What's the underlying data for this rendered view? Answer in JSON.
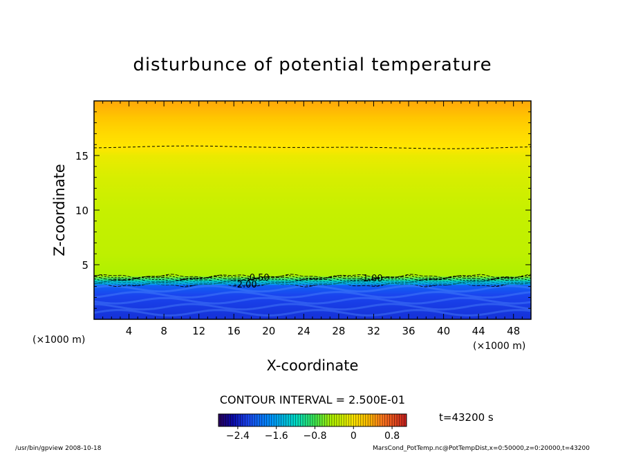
{
  "chart_data": {
    "type": "heatmap",
    "title": "disturbunce of potential temperature",
    "xlabel": "X-coordinate",
    "ylabel": "Z-coordinate",
    "x_unit": "(×1000 m)",
    "y_unit": "(×1000 m)",
    "xlim": [
      0,
      50
    ],
    "ylim": [
      0,
      20
    ],
    "x_ticks": [
      4,
      8,
      12,
      16,
      20,
      24,
      28,
      32,
      36,
      40,
      44,
      48
    ],
    "y_ticks": [
      5,
      10,
      15
    ],
    "grid": false,
    "contour_interval_text": "CONTOUR INTERVAL = 2.500E-01",
    "time_text": "t=43200 s",
    "colorbar": {
      "range": [
        -2.8,
        1.1
      ],
      "ticks": [
        -2.4,
        -1.6,
        -0.8,
        0,
        0.8
      ],
      "tick_labels": [
        "−2.4",
        "−1.6",
        "−0.8",
        "0",
        "0.8"
      ]
    },
    "contour_labels": [
      "-0.50",
      "-2.00",
      "-1.00"
    ],
    "field_profile": [
      {
        "z": 0.0,
        "value": -2.3
      },
      {
        "z": 2.2,
        "value": -2.2
      },
      {
        "z": 3.2,
        "value": -2.0
      },
      {
        "z": 3.6,
        "value": -1.0
      },
      {
        "z": 4.0,
        "value": -0.45
      },
      {
        "z": 6.0,
        "value": -0.35
      },
      {
        "z": 10.0,
        "value": -0.3
      },
      {
        "z": 13.0,
        "value": -0.2
      },
      {
        "z": 15.0,
        "value": -0.1
      },
      {
        "z": 15.7,
        "value": 0.0
      },
      {
        "z": 17.0,
        "value": 0.1
      },
      {
        "z": 18.5,
        "value": 0.25
      },
      {
        "z": 20.0,
        "value": 0.4
      }
    ],
    "zero_contour_z": 15.75,
    "front_z": 3.6
  },
  "footer": {
    "left": "/usr/bin/gpview   2008-10-18",
    "right": "MarsCond_PotTemp.nc@PotTempDist,x=0:50000,z=0:20000,t=43200"
  },
  "colors": {
    "cold": "#1a44ee",
    "mid": "#c4f000",
    "warm": "#ffb300"
  }
}
